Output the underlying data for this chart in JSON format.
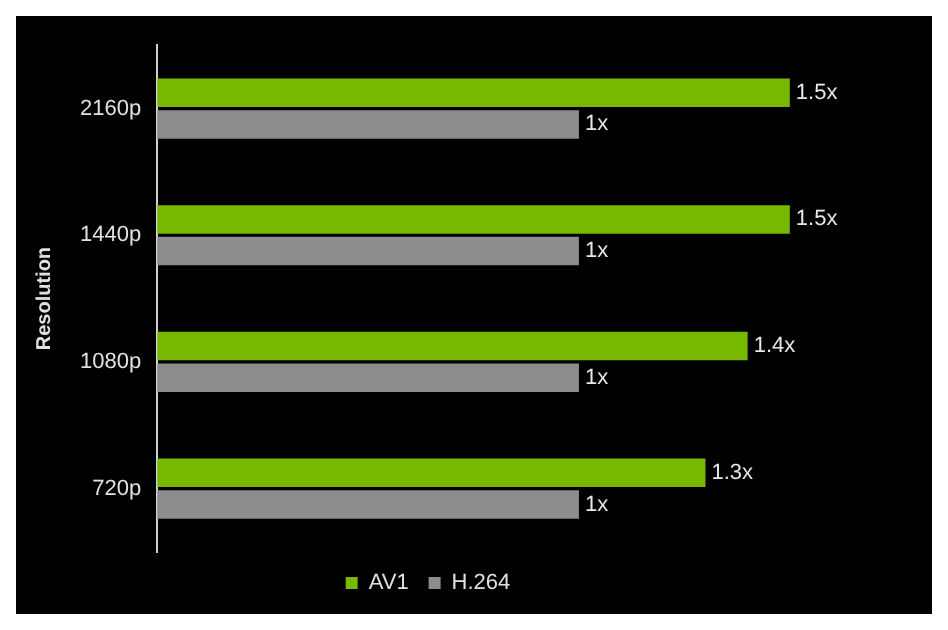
{
  "chart_data": {
    "type": "bar",
    "orientation": "horizontal",
    "ylabel": "Resolution",
    "categories": [
      "2160p",
      "1440p",
      "1080p",
      "720p"
    ],
    "series": [
      {
        "name": "AV1",
        "color": "#76b900",
        "values": [
          1.5,
          1.5,
          1.4,
          1.3
        ],
        "value_labels": [
          "1.5x",
          "1.5x",
          "1.4x",
          "1.3x"
        ]
      },
      {
        "name": "H.264",
        "color": "#8c8c8c",
        "values": [
          1,
          1,
          1,
          1
        ],
        "value_labels": [
          "1x",
          "1x",
          "1x",
          "1x"
        ]
      }
    ],
    "legend": "bottom"
  }
}
